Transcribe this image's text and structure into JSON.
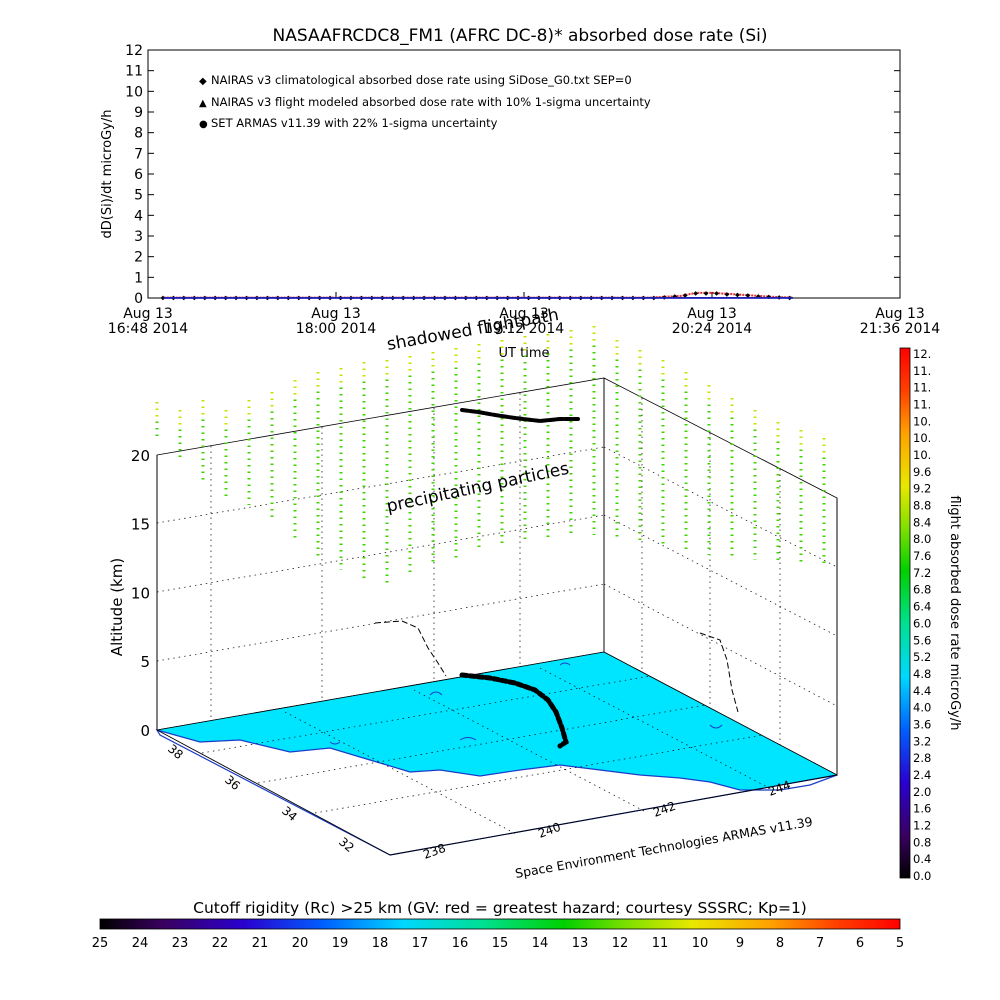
{
  "chart_data": [
    {
      "type": "line",
      "title": "NASAAFRCDC8_FM1 (AFRC DC-8)* absorbed dose rate (Si)",
      "xlabel": "UT time",
      "ylabel": "dD(Si)/dt microGy/h",
      "ylim": [
        0,
        12
      ],
      "yticks": [
        "0",
        "1",
        "2",
        "3",
        "4",
        "5",
        "6",
        "7",
        "8",
        "9",
        "10",
        "11",
        "12"
      ],
      "xticks": [
        {
          "date": "Aug 13",
          "time": "16:48 2014"
        },
        {
          "date": "Aug 13",
          "time": "18:00 2014"
        },
        {
          "date": "Aug 13",
          "time": "19:12 2014"
        },
        {
          "date": "Aug 13",
          "time": "20:24 2014"
        },
        {
          "date": "Aug 13",
          "time": "21:36 2014"
        }
      ],
      "xlim": [
        "2014-08-13 16:48",
        "2014-08-13 21:36"
      ],
      "legend": "top-left",
      "series": [
        {
          "name": "NAIRAS v3 climatological absorbed dose rate using SiDose_G0.txt SEP=0",
          "color": "#e03030",
          "x": [
            "16:54",
            "17:30",
            "18:30",
            "19:30",
            "20:00",
            "20:12",
            "20:18",
            "20:24",
            "20:36",
            "20:48",
            "20:55"
          ],
          "y": [
            0.02,
            0.02,
            0.02,
            0.02,
            0.02,
            0.1,
            0.25,
            0.25,
            0.15,
            0.05,
            0.02
          ]
        },
        {
          "name": "NAIRAS v3 flight modeled absorbed dose rate with 10% 1-sigma uncertainty",
          "color": "#555555",
          "x": [
            "16:54",
            "20:55"
          ],
          "y": [
            0.01,
            0.01
          ]
        },
        {
          "name": "SET ARMAS v11.39 with 22% 1-sigma uncertainty",
          "color": "#1010c8",
          "x": [
            "16:54",
            "20:55"
          ],
          "y": [
            0.0,
            0.0
          ]
        }
      ]
    },
    {
      "type": "scatter",
      "zlabel": "Altitude (km)",
      "zticks": [
        "0",
        "5",
        "10",
        "15",
        "20"
      ],
      "lat_ticks": [
        "38",
        "36",
        "34",
        "32"
      ],
      "lon_ticks": [
        "238",
        "240",
        "242",
        "244"
      ],
      "annotations": [
        "shadowed flightpath",
        "precipitating particles"
      ],
      "credit": "Space Environment Technologies ARMAS v11.39",
      "surface_color": "#00e5ff"
    },
    {
      "type": "heatmap",
      "label": "flight absorbed dose rate microGy/h",
      "ticks": [
        "0.0",
        "0.4",
        "0.8",
        "1.2",
        "1.6",
        "2.0",
        "2.4",
        "2.8",
        "3.2",
        "3.6",
        "4.0",
        "4.4",
        "4.8",
        "5.2",
        "5.6",
        "6.0",
        "6.4",
        "6.8",
        "7.2",
        "7.6",
        "8.0",
        "8.4",
        "8.8",
        "9.2",
        "9.6",
        "10.",
        "10.",
        "10.",
        "11.",
        "11.",
        "11.",
        "12."
      ],
      "range": [
        0,
        12.4
      ]
    },
    {
      "type": "heatmap",
      "label": "Cutoff rigidity (Rc) >25 km (GV: red = greatest hazard; courtesy SSSRC; Kp=1)",
      "ticks": [
        "25",
        "24",
        "23",
        "22",
        "21",
        "20",
        "19",
        "18",
        "17",
        "16",
        "15",
        "14",
        "13",
        "12",
        "11",
        "10",
        "9",
        "8",
        "7",
        "6",
        "5"
      ],
      "range": [
        25,
        5
      ]
    }
  ]
}
